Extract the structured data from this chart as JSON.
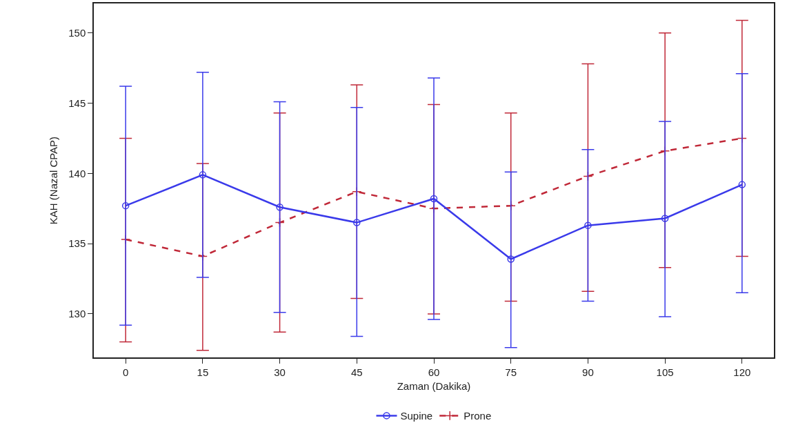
{
  "chart_data": {
    "type": "line",
    "xlabel": "Zaman (Dakika)",
    "ylabel": "KAH (Nazal CPAP)",
    "x": [
      0,
      15,
      30,
      45,
      60,
      75,
      90,
      105,
      120
    ],
    "xlim": [
      -6.2,
      126.2
    ],
    "xticks": [
      0,
      15,
      30,
      45,
      60,
      75,
      90,
      105,
      120
    ],
    "ylim": [
      126.9,
      152.1
    ],
    "yticks": [
      130,
      135,
      140,
      145,
      150
    ],
    "grid": false,
    "legend": "bottom",
    "series": [
      {
        "name": "Supine",
        "color": "#3a3aea",
        "marker": "circle",
        "line_style": "solid",
        "values": [
          137.7,
          139.9,
          137.6,
          136.5,
          138.2,
          133.9,
          136.3,
          136.8,
          139.2
        ],
        "errors": [
          [
            129.2,
            146.2
          ],
          [
            132.6,
            147.2
          ],
          [
            130.1,
            145.1
          ],
          [
            128.4,
            144.7
          ],
          [
            129.6,
            146.8
          ],
          [
            127.6,
            140.1
          ],
          [
            130.9,
            141.7
          ],
          [
            129.8,
            143.7
          ],
          [
            131.5,
            147.1
          ]
        ]
      },
      {
        "name": "Prone",
        "color": "#c02838",
        "marker": "cross",
        "line_style": "dashed",
        "values": [
          135.3,
          134.1,
          136.5,
          138.7,
          137.5,
          137.7,
          139.8,
          141.6,
          142.5
        ],
        "errors": [
          [
            128.0,
            142.5
          ],
          [
            127.4,
            140.7
          ],
          [
            128.7,
            144.3
          ],
          [
            131.1,
            146.3
          ],
          [
            130.0,
            144.9
          ],
          [
            130.9,
            144.3
          ],
          [
            131.6,
            147.8
          ],
          [
            133.3,
            150.0
          ],
          [
            134.1,
            150.9
          ]
        ]
      }
    ]
  }
}
